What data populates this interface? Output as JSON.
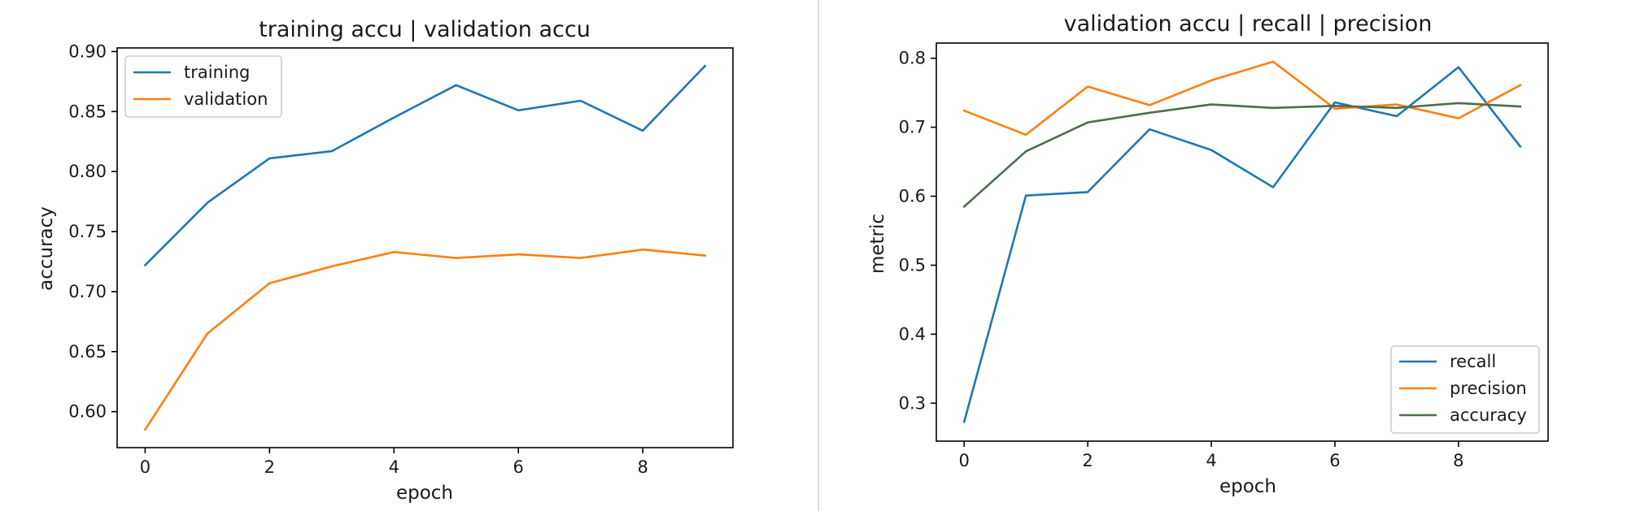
{
  "chart_data": [
    {
      "type": "line",
      "title": "training accu | validation accu",
      "xlabel": "epoch",
      "ylabel": "accuracy",
      "x": [
        0,
        1,
        2,
        3,
        4,
        5,
        6,
        7,
        8,
        9
      ],
      "xlim": [
        -0.45,
        9.45
      ],
      "ylim": [
        0.57,
        0.903
      ],
      "xticks": [
        0,
        2,
        4,
        6,
        8
      ],
      "yticks": [
        0.6,
        0.65,
        0.7,
        0.75,
        0.8,
        0.85,
        0.9
      ],
      "ytick_labels": [
        "0.60",
        "0.65",
        "0.70",
        "0.75",
        "0.80",
        "0.85",
        "0.90"
      ],
      "grid": false,
      "legend_position": "top-left",
      "series": [
        {
          "name": "training",
          "color": "#1f77b4",
          "values": [
            0.722,
            0.774,
            0.811,
            0.817,
            0.845,
            0.872,
            0.851,
            0.859,
            0.834,
            0.888
          ]
        },
        {
          "name": "validation",
          "color": "#ff7f0e",
          "values": [
            0.585,
            0.665,
            0.707,
            0.721,
            0.733,
            0.728,
            0.731,
            0.728,
            0.735,
            0.73
          ]
        }
      ]
    },
    {
      "type": "line",
      "title": "validation accu | recall | precision",
      "xlabel": "epoch",
      "ylabel": "metric",
      "x": [
        0,
        1,
        2,
        3,
        4,
        5,
        6,
        7,
        8,
        9
      ],
      "xlim": [
        -0.45,
        9.45
      ],
      "ylim": [
        0.245,
        0.822
      ],
      "xticks": [
        0,
        2,
        4,
        6,
        8
      ],
      "yticks": [
        0.3,
        0.4,
        0.5,
        0.6,
        0.7,
        0.8
      ],
      "ytick_labels": [
        "0.3",
        "0.4",
        "0.5",
        "0.6",
        "0.7",
        "0.8"
      ],
      "grid": false,
      "legend_position": "bottom-right",
      "series": [
        {
          "name": "recall",
          "color": "#1f77b4",
          "values": [
            0.273,
            0.601,
            0.606,
            0.697,
            0.667,
            0.613,
            0.736,
            0.716,
            0.787,
            0.672
          ]
        },
        {
          "name": "precision",
          "color": "#ff7f0e",
          "values": [
            0.724,
            0.689,
            0.759,
            0.732,
            0.768,
            0.795,
            0.727,
            0.733,
            0.713,
            0.761
          ]
        },
        {
          "name": "accuracy",
          "color": "#4c6e4c",
          "values": [
            0.585,
            0.665,
            0.707,
            0.721,
            0.733,
            0.728,
            0.731,
            0.728,
            0.735,
            0.73
          ]
        }
      ]
    }
  ]
}
